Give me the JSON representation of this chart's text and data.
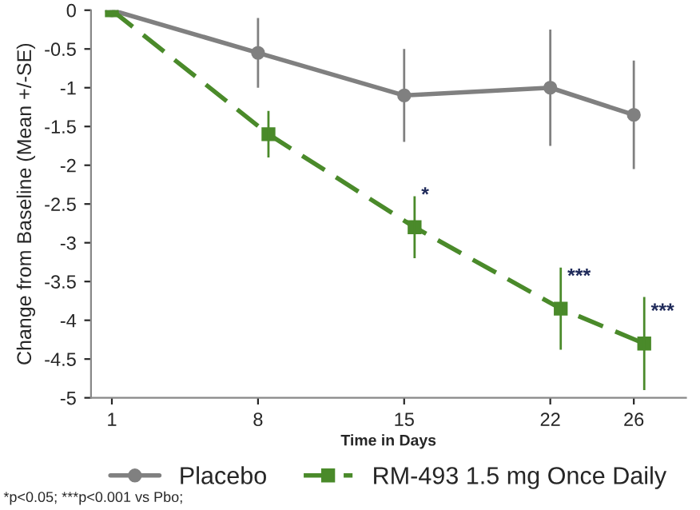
{
  "chart_data": {
    "type": "line",
    "xlabel": "Time in Days",
    "ylabel": "Change from Baseline (Mean +/-SE)",
    "xlim": [
      0,
      28.5
    ],
    "xticks": [
      1,
      8,
      15,
      22,
      26
    ],
    "ylim": [
      -5,
      0
    ],
    "yticks": [
      -5,
      -4.5,
      -4,
      -3.5,
      -3,
      -2.5,
      -2,
      -1.5,
      -1,
      -0.5,
      0
    ],
    "series": [
      {
        "name": "Placebo",
        "color": "#808080",
        "marker": "circle",
        "line_style": "solid",
        "x": [
          1,
          8,
          15,
          22,
          26
        ],
        "values": [
          0,
          -0.55,
          -1.1,
          -1.0,
          -1.35
        ],
        "errors": [
          null,
          0.45,
          0.6,
          0.75,
          0.7
        ]
      },
      {
        "name": "RM-493 1.5 mg Once Daily",
        "color": "#4a8a2a",
        "marker": "square",
        "line_style": "dashed",
        "x": [
          1,
          8.5,
          15.5,
          22.5,
          26.5
        ],
        "values": [
          0,
          -1.6,
          -2.8,
          -3.85,
          -4.3
        ],
        "errors": [
          null,
          0.3,
          0.4,
          0.53,
          0.6
        ]
      }
    ],
    "annotations": [
      {
        "text": "*",
        "x": 15.5,
        "y": -2.8
      },
      {
        "text": "***",
        "x": 22.5,
        "y": -3.85
      },
      {
        "text": "***",
        "x": 26.5,
        "y": -4.3
      },
      "*p<0.05; ***p<0.001 vs Pbo;"
    ],
    "grid": false,
    "legend": "bottom"
  }
}
